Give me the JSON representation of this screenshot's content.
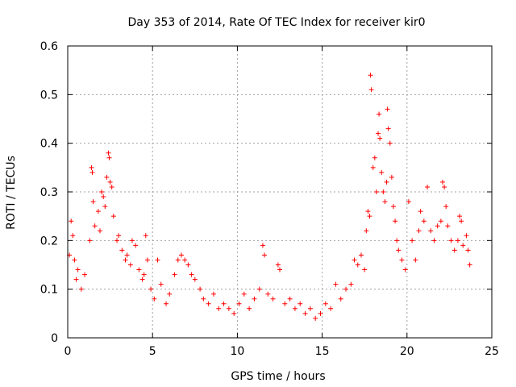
{
  "chart_data": {
    "type": "scatter",
    "title": "Day 353 of 2014, Rate Of TEC Index for receiver kir0",
    "xlabel": "GPS time / hours",
    "ylabel": "ROTI / TECUs",
    "xlim": [
      0,
      25
    ],
    "ylim": [
      0,
      0.6
    ],
    "xticks": [
      "0",
      "5",
      "10",
      "15",
      "20",
      "25"
    ],
    "yticks": [
      "0",
      "0.1",
      "0.2",
      "0.3",
      "0.4",
      "0.5",
      "0.6"
    ],
    "grid": true,
    "marker": "+",
    "color": "#ff0000",
    "series": [
      {
        "name": "ROTI",
        "points": [
          [
            0.1,
            0.17
          ],
          [
            0.2,
            0.24
          ],
          [
            0.3,
            0.21
          ],
          [
            0.4,
            0.16
          ],
          [
            0.5,
            0.12
          ],
          [
            0.6,
            0.14
          ],
          [
            0.8,
            0.1
          ],
          [
            1.0,
            0.13
          ],
          [
            1.3,
            0.2
          ],
          [
            1.4,
            0.35
          ],
          [
            1.45,
            0.34
          ],
          [
            1.5,
            0.28
          ],
          [
            1.6,
            0.23
          ],
          [
            1.8,
            0.26
          ],
          [
            1.9,
            0.22
          ],
          [
            2.0,
            0.3
          ],
          [
            2.1,
            0.29
          ],
          [
            2.2,
            0.27
          ],
          [
            2.3,
            0.33
          ],
          [
            2.4,
            0.38
          ],
          [
            2.45,
            0.37
          ],
          [
            2.5,
            0.32
          ],
          [
            2.6,
            0.31
          ],
          [
            2.7,
            0.25
          ],
          [
            2.9,
            0.2
          ],
          [
            3.0,
            0.21
          ],
          [
            3.2,
            0.18
          ],
          [
            3.4,
            0.16
          ],
          [
            3.5,
            0.17
          ],
          [
            3.7,
            0.15
          ],
          [
            3.8,
            0.2
          ],
          [
            4.0,
            0.19
          ],
          [
            4.2,
            0.14
          ],
          [
            4.4,
            0.12
          ],
          [
            4.5,
            0.13
          ],
          [
            4.6,
            0.21
          ],
          [
            4.7,
            0.16
          ],
          [
            4.9,
            0.1
          ],
          [
            5.1,
            0.08
          ],
          [
            5.3,
            0.16
          ],
          [
            5.5,
            0.11
          ],
          [
            5.8,
            0.07
          ],
          [
            6.0,
            0.09
          ],
          [
            6.3,
            0.13
          ],
          [
            6.5,
            0.16
          ],
          [
            6.7,
            0.17
          ],
          [
            6.9,
            0.16
          ],
          [
            7.1,
            0.15
          ],
          [
            7.3,
            0.13
          ],
          [
            7.5,
            0.12
          ],
          [
            7.8,
            0.1
          ],
          [
            8.0,
            0.08
          ],
          [
            8.3,
            0.07
          ],
          [
            8.6,
            0.09
          ],
          [
            8.9,
            0.06
          ],
          [
            9.2,
            0.07
          ],
          [
            9.5,
            0.06
          ],
          [
            9.8,
            0.05
          ],
          [
            10.1,
            0.07
          ],
          [
            10.4,
            0.09
          ],
          [
            10.7,
            0.06
          ],
          [
            11.0,
            0.08
          ],
          [
            11.3,
            0.1
          ],
          [
            11.5,
            0.19
          ],
          [
            11.6,
            0.17
          ],
          [
            11.8,
            0.09
          ],
          [
            12.1,
            0.08
          ],
          [
            12.4,
            0.15
          ],
          [
            12.5,
            0.14
          ],
          [
            12.8,
            0.07
          ],
          [
            13.1,
            0.08
          ],
          [
            13.4,
            0.06
          ],
          [
            13.7,
            0.07
          ],
          [
            14.0,
            0.05
          ],
          [
            14.3,
            0.06
          ],
          [
            14.6,
            0.04
          ],
          [
            14.9,
            0.05
          ],
          [
            15.2,
            0.07
          ],
          [
            15.5,
            0.06
          ],
          [
            15.8,
            0.11
          ],
          [
            16.1,
            0.08
          ],
          [
            16.4,
            0.1
          ],
          [
            16.7,
            0.11
          ],
          [
            16.9,
            0.16
          ],
          [
            17.1,
            0.15
          ],
          [
            17.3,
            0.17
          ],
          [
            17.5,
            0.14
          ],
          [
            17.6,
            0.22
          ],
          [
            17.7,
            0.26
          ],
          [
            17.8,
            0.25
          ],
          [
            17.85,
            0.54
          ],
          [
            17.9,
            0.51
          ],
          [
            18.0,
            0.35
          ],
          [
            18.1,
            0.37
          ],
          [
            18.2,
            0.3
          ],
          [
            18.3,
            0.42
          ],
          [
            18.35,
            0.46
          ],
          [
            18.4,
            0.41
          ],
          [
            18.5,
            0.34
          ],
          [
            18.6,
            0.3
          ],
          [
            18.7,
            0.28
          ],
          [
            18.8,
            0.32
          ],
          [
            18.85,
            0.47
          ],
          [
            18.9,
            0.43
          ],
          [
            19.0,
            0.4
          ],
          [
            19.1,
            0.33
          ],
          [
            19.2,
            0.27
          ],
          [
            19.3,
            0.24
          ],
          [
            19.4,
            0.2
          ],
          [
            19.5,
            0.18
          ],
          [
            19.7,
            0.16
          ],
          [
            19.9,
            0.14
          ],
          [
            20.1,
            0.28
          ],
          [
            20.3,
            0.2
          ],
          [
            20.5,
            0.16
          ],
          [
            20.7,
            0.22
          ],
          [
            20.8,
            0.26
          ],
          [
            21.0,
            0.24
          ],
          [
            21.2,
            0.31
          ],
          [
            21.4,
            0.22
          ],
          [
            21.6,
            0.2
          ],
          [
            21.8,
            0.23
          ],
          [
            22.0,
            0.24
          ],
          [
            22.1,
            0.32
          ],
          [
            22.2,
            0.31
          ],
          [
            22.3,
            0.27
          ],
          [
            22.4,
            0.23
          ],
          [
            22.6,
            0.2
          ],
          [
            22.8,
            0.18
          ],
          [
            23.0,
            0.2
          ],
          [
            23.1,
            0.25
          ],
          [
            23.2,
            0.24
          ],
          [
            23.3,
            0.19
          ],
          [
            23.5,
            0.21
          ],
          [
            23.6,
            0.18
          ],
          [
            23.7,
            0.15
          ]
        ]
      }
    ]
  }
}
